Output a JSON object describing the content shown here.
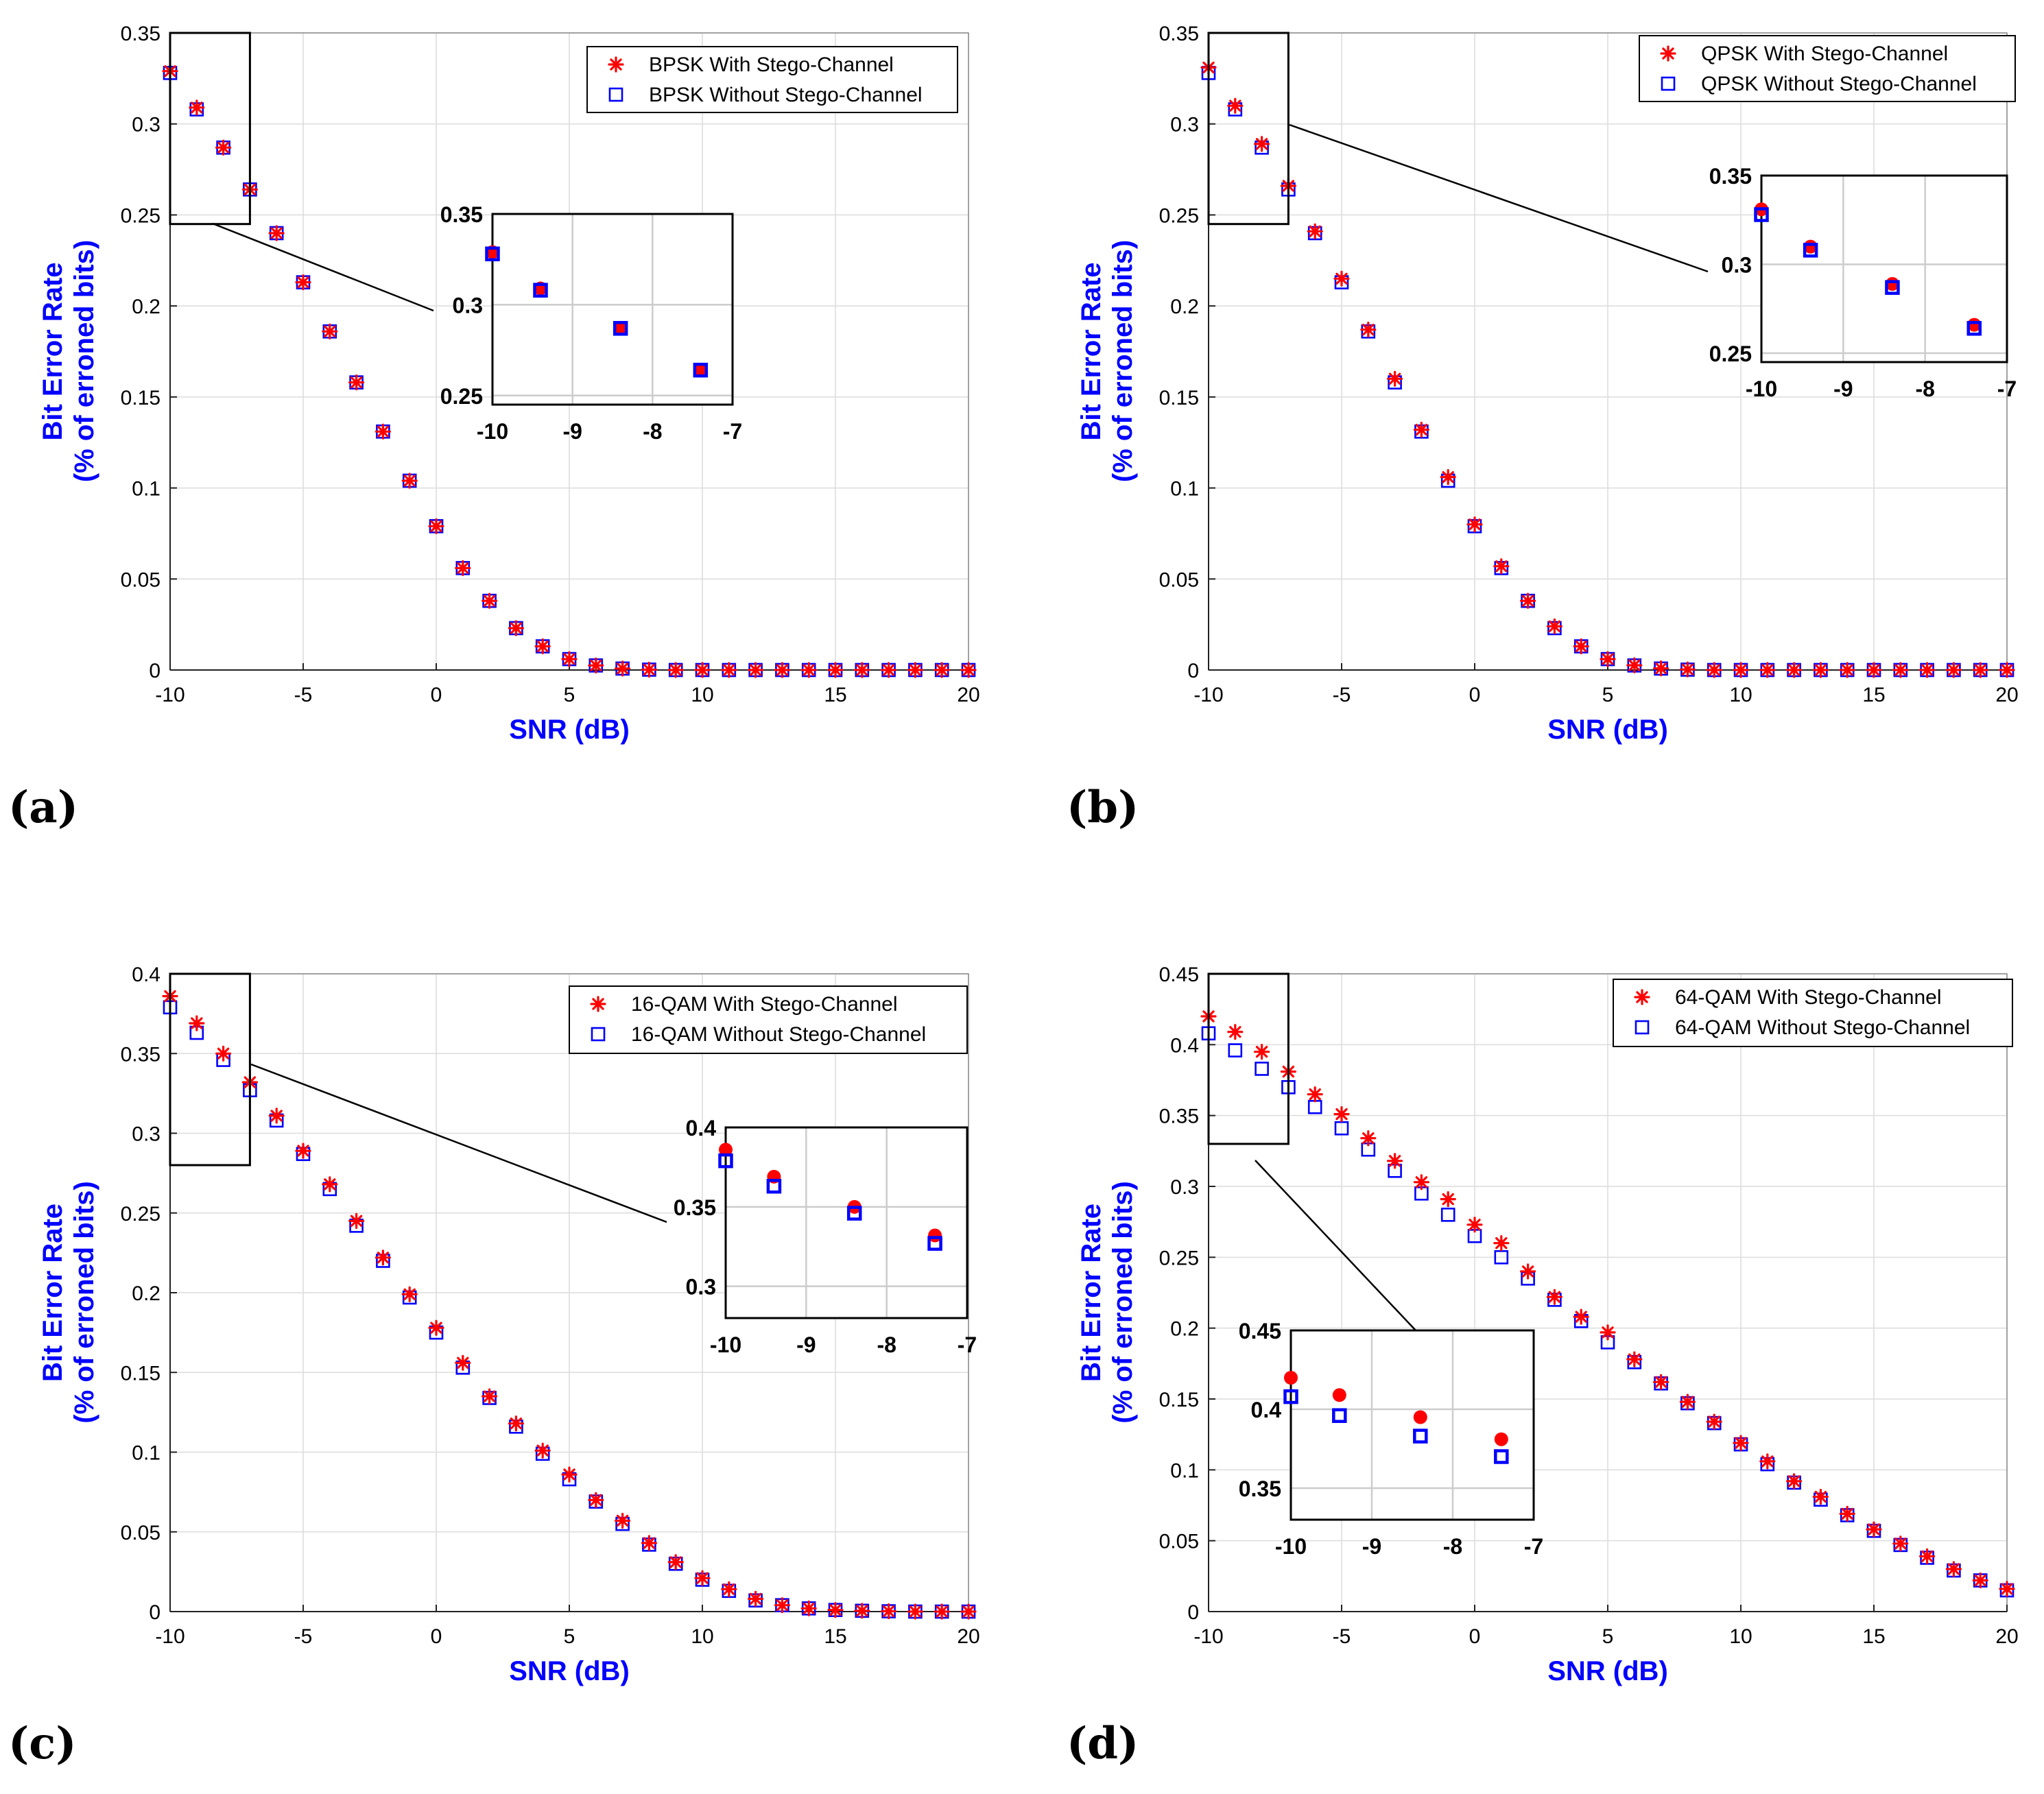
{
  "figure": {
    "panel_labels": [
      "(a)",
      "(b)",
      "(c)",
      "(d)"
    ]
  },
  "colors": {
    "with_stego": "#ff0000",
    "without_stego": "#0000ff",
    "axis_label": "#0000ff",
    "grid": "#dcdcdc"
  },
  "chart_data": [
    {
      "type": "scatter",
      "panel": "(a)",
      "xlabel": "SNR (dB)",
      "ylabel_line1": "Bit Error Rate",
      "ylabel_line2": "(% of erroned bits)",
      "xlim": [
        -10,
        20
      ],
      "ylim": [
        0,
        0.35
      ],
      "xticks": [
        -10,
        -5,
        0,
        5,
        10,
        15,
        20
      ],
      "xtick_labels": [
        "-10",
        "-5",
        "0",
        "5",
        "10",
        "15",
        "20"
      ],
      "yticks": [
        0,
        0.05,
        0.1,
        0.15,
        0.2,
        0.25,
        0.3,
        0.35
      ],
      "ytick_labels": [
        "0",
        "0.05",
        "0.1",
        "0.15",
        "0.2",
        "0.25",
        "0.3",
        "0.35"
      ],
      "legend_position": "top-right",
      "x": [
        -10,
        -9,
        -8,
        -7,
        -6,
        -5,
        -4,
        -3,
        -2,
        -1,
        0,
        1,
        2,
        3,
        4,
        5,
        6,
        7,
        8,
        9,
        10,
        11,
        12,
        13,
        14,
        15,
        16,
        17,
        18,
        19,
        20
      ],
      "series": [
        {
          "name": "BPSK  With Stego-Channel",
          "marker": "asterisk",
          "values": [
            0.329,
            0.309,
            0.287,
            0.264,
            0.24,
            0.213,
            0.186,
            0.158,
            0.131,
            0.104,
            0.079,
            0.056,
            0.038,
            0.023,
            0.013,
            0.006,
            0.0025,
            0.0008,
            0.0002,
            0,
            0,
            0,
            0,
            0,
            0,
            0,
            0,
            0,
            0,
            0,
            0
          ]
        },
        {
          "name": "BPSK Without Stego-Channel",
          "marker": "square",
          "values": [
            0.328,
            0.308,
            0.287,
            0.264,
            0.24,
            0.213,
            0.186,
            0.158,
            0.131,
            0.104,
            0.079,
            0.056,
            0.038,
            0.023,
            0.013,
            0.006,
            0.0025,
            0.0008,
            0.0002,
            0,
            0,
            0,
            0,
            0,
            0,
            0,
            0,
            0,
            0,
            0,
            0
          ]
        }
      ],
      "inset": {
        "xlim": [
          -10,
          -7
        ],
        "ylim": [
          0.245,
          0.35
        ],
        "xticks": [
          -10,
          -9,
          -8,
          -7
        ],
        "xtick_labels": [
          "-10",
          "-9",
          "-8",
          "-7"
        ],
        "yticks": [
          0.25,
          0.3,
          0.35
        ],
        "ytick_labels": [
          "0.25",
          "0.3",
          "0.35"
        ]
      }
    },
    {
      "type": "scatter",
      "panel": "(b)",
      "xlabel": "SNR (dB)",
      "ylabel_line1": "Bit Error Rate",
      "ylabel_line2": "(% of erroned bits)",
      "xlim": [
        -10,
        20
      ],
      "ylim": [
        0,
        0.35
      ],
      "xticks": [
        -10,
        -5,
        0,
        5,
        10,
        15,
        20
      ],
      "xtick_labels": [
        "-10",
        "-5",
        "0",
        "5",
        "10",
        "15",
        "20"
      ],
      "yticks": [
        0,
        0.05,
        0.1,
        0.15,
        0.2,
        0.25,
        0.3,
        0.35
      ],
      "ytick_labels": [
        "0",
        "0.05",
        "0.1",
        "0.15",
        "0.2",
        "0.25",
        "0.3",
        "0.35"
      ],
      "legend_position": "top-right",
      "x": [
        -10,
        -9,
        -8,
        -7,
        -6,
        -5,
        -4,
        -3,
        -2,
        -1,
        0,
        1,
        2,
        3,
        4,
        5,
        6,
        7,
        8,
        9,
        10,
        11,
        12,
        13,
        14,
        15,
        16,
        17,
        18,
        19,
        20
      ],
      "series": [
        {
          "name": "QPSK  With Stego-Channel",
          "marker": "asterisk",
          "values": [
            0.331,
            0.31,
            0.289,
            0.266,
            0.241,
            0.215,
            0.187,
            0.16,
            0.132,
            0.106,
            0.08,
            0.057,
            0.038,
            0.024,
            0.013,
            0.006,
            0.0026,
            0.0009,
            0.0003,
            0,
            0,
            0,
            0,
            0,
            0,
            0,
            0,
            0,
            0,
            0,
            0
          ]
        },
        {
          "name": "QPSK Without Stego-Channel",
          "marker": "square",
          "values": [
            0.328,
            0.308,
            0.287,
            0.264,
            0.24,
            0.213,
            0.186,
            0.158,
            0.131,
            0.104,
            0.079,
            0.056,
            0.038,
            0.023,
            0.013,
            0.006,
            0.0025,
            0.0008,
            0.0002,
            0,
            0,
            0,
            0,
            0,
            0,
            0,
            0,
            0,
            0,
            0,
            0
          ]
        }
      ],
      "inset": {
        "xlim": [
          -10,
          -7
        ],
        "ylim": [
          0.245,
          0.35
        ],
        "xticks": [
          -10,
          -9,
          -8,
          -7
        ],
        "xtick_labels": [
          "-10",
          "-9",
          "-8",
          "-7"
        ],
        "yticks": [
          0.25,
          0.3,
          0.35
        ],
        "ytick_labels": [
          "0.25",
          "0.3",
          "0.35"
        ]
      }
    },
    {
      "type": "scatter",
      "panel": "(c)",
      "xlabel": "SNR (dB)",
      "ylabel_line1": "Bit Error Rate",
      "ylabel_line2": "(% of erroned bits)",
      "xlim": [
        -10,
        20
      ],
      "ylim": [
        0,
        0.4
      ],
      "xticks": [
        -10,
        -5,
        0,
        5,
        10,
        15,
        20
      ],
      "xtick_labels": [
        "-10",
        "-5",
        "0",
        "5",
        "10",
        "15",
        "20"
      ],
      "yticks": [
        0,
        0.05,
        0.1,
        0.15,
        0.2,
        0.25,
        0.3,
        0.35,
        0.4
      ],
      "ytick_labels": [
        "0",
        "0.05",
        "0.1",
        "0.15",
        "0.2",
        "0.25",
        "0.3",
        "0.35",
        "0.4"
      ],
      "legend_position": "top-right",
      "x": [
        -10,
        -9,
        -8,
        -7,
        -6,
        -5,
        -4,
        -3,
        -2,
        -1,
        0,
        1,
        2,
        3,
        4,
        5,
        6,
        7,
        8,
        9,
        10,
        11,
        12,
        13,
        14,
        15,
        16,
        17,
        18,
        19,
        20
      ],
      "series": [
        {
          "name": "16-QAM  With Stego-Channel",
          "marker": "asterisk",
          "values": [
            0.386,
            0.369,
            0.35,
            0.332,
            0.311,
            0.289,
            0.268,
            0.245,
            0.222,
            0.199,
            0.178,
            0.156,
            0.135,
            0.118,
            0.101,
            0.086,
            0.07,
            0.057,
            0.043,
            0.031,
            0.021,
            0.014,
            0.008,
            0.004,
            0.002,
            0.001,
            0.0005,
            0.0002,
            0,
            0,
            0
          ]
        },
        {
          "name": "16-QAM Without Stego-Channel",
          "marker": "square",
          "values": [
            0.379,
            0.363,
            0.346,
            0.327,
            0.308,
            0.287,
            0.265,
            0.242,
            0.22,
            0.197,
            0.175,
            0.153,
            0.134,
            0.116,
            0.099,
            0.083,
            0.069,
            0.055,
            0.042,
            0.03,
            0.02,
            0.013,
            0.007,
            0.004,
            0.002,
            0.001,
            0.0005,
            0.0002,
            0,
            0,
            0
          ]
        }
      ],
      "inset": {
        "xlim": [
          -10,
          -7
        ],
        "ylim": [
          0.28,
          0.4
        ],
        "xticks": [
          -10,
          -9,
          -8,
          -7
        ],
        "xtick_labels": [
          "-10",
          "-9",
          "-8",
          "-7"
        ],
        "yticks": [
          0.3,
          0.35,
          0.4
        ],
        "ytick_labels": [
          "0.3",
          "0.35",
          "0.4"
        ]
      }
    },
    {
      "type": "scatter",
      "panel": "(d)",
      "xlabel": "SNR (dB)",
      "ylabel_line1": "Bit Error Rate",
      "ylabel_line2": "(% of erroned bits)",
      "xlim": [
        -10,
        20
      ],
      "ylim": [
        0,
        0.45
      ],
      "xticks": [
        -10,
        -5,
        0,
        5,
        10,
        15,
        20
      ],
      "xtick_labels": [
        "-10",
        "-5",
        "0",
        "5",
        "10",
        "15",
        "20"
      ],
      "yticks": [
        0,
        0.05,
        0.1,
        0.15,
        0.2,
        0.25,
        0.3,
        0.35,
        0.4,
        0.45
      ],
      "ytick_labels": [
        "0",
        "0.05",
        "0.1",
        "0.15",
        "0.2",
        "0.25",
        "0.3",
        "0.35",
        "0.4",
        "0.45"
      ],
      "legend_position": "top-right",
      "x": [
        -10,
        -9,
        -8,
        -7,
        -6,
        -5,
        -4,
        -3,
        -2,
        -1,
        0,
        1,
        2,
        3,
        4,
        5,
        6,
        7,
        8,
        9,
        10,
        11,
        12,
        13,
        14,
        15,
        16,
        17,
        18,
        19,
        20
      ],
      "series": [
        {
          "name": "64-QAM With Stego-Channel",
          "marker": "asterisk",
          "values": [
            0.42,
            0.409,
            0.395,
            0.381,
            0.365,
            0.351,
            0.334,
            0.318,
            0.303,
            0.291,
            0.273,
            0.26,
            0.24,
            0.222,
            0.208,
            0.197,
            0.178,
            0.162,
            0.148,
            0.134,
            0.119,
            0.106,
            0.092,
            0.081,
            0.069,
            0.058,
            0.048,
            0.039,
            0.03,
            0.022,
            0.016
          ]
        },
        {
          "name": "64-QAM Without Stego-Channel",
          "marker": "square",
          "values": [
            0.408,
            0.396,
            0.383,
            0.37,
            0.356,
            0.341,
            0.326,
            0.311,
            0.295,
            0.28,
            0.265,
            0.25,
            0.235,
            0.22,
            0.205,
            0.19,
            0.176,
            0.161,
            0.147,
            0.133,
            0.118,
            0.104,
            0.091,
            0.079,
            0.068,
            0.057,
            0.047,
            0.038,
            0.029,
            0.022,
            0.015
          ]
        }
      ],
      "inset": {
        "xlim": [
          -10,
          -7
        ],
        "ylim": [
          0.33,
          0.45
        ],
        "xticks": [
          -10,
          -9,
          -8,
          -7
        ],
        "xtick_labels": [
          "-10",
          "-9",
          "-8",
          "-7"
        ],
        "yticks": [
          0.35,
          0.4,
          0.45
        ],
        "ytick_labels": [
          "0.35",
          "0.4",
          "0.45"
        ]
      }
    }
  ]
}
